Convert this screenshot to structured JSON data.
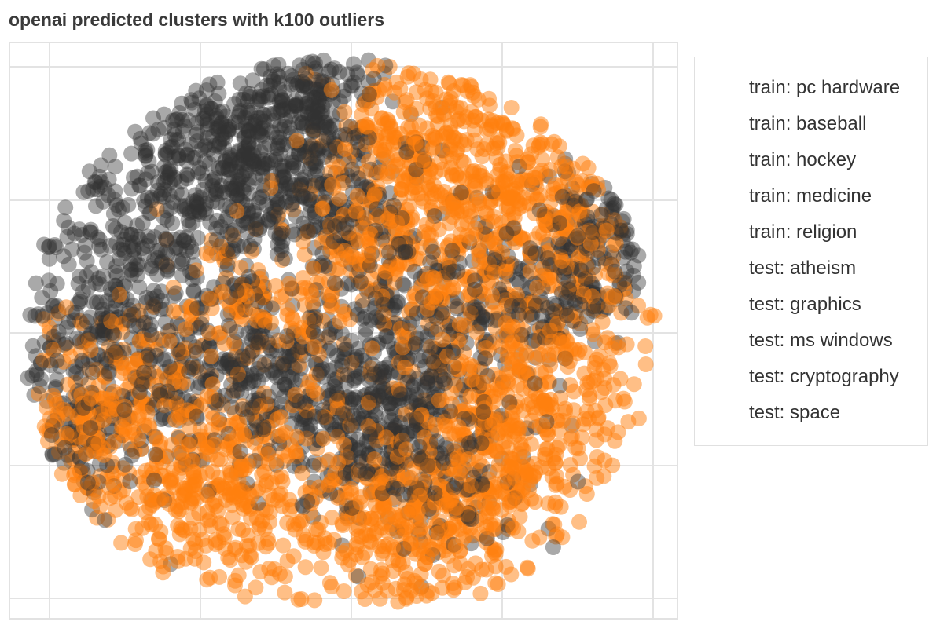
{
  "chart_data": {
    "type": "scatter",
    "title": "openai predicted clusters with k100 outliers",
    "xlabel": "",
    "ylabel": "",
    "grid": true,
    "tick_labels_shown": false,
    "legend_position": "right",
    "series": [
      {
        "name": "train: pc hardware",
        "color": "#333333"
      },
      {
        "name": "train: baseball",
        "color": "#333333"
      },
      {
        "name": "train: hockey",
        "color": "#333333"
      },
      {
        "name": "train: medicine",
        "color": "#333333"
      },
      {
        "name": "train: religion",
        "color": "#333333"
      },
      {
        "name": "test: atheism",
        "color": "#ff7f0e"
      },
      {
        "name": "test: graphics",
        "color": "#ff7f0e"
      },
      {
        "name": "test: ms windows",
        "color": "#ff7f0e"
      },
      {
        "name": "test: cryptography",
        "color": "#ff7f0e"
      },
      {
        "name": "test: space",
        "color": "#ff7f0e"
      }
    ]
  }
}
